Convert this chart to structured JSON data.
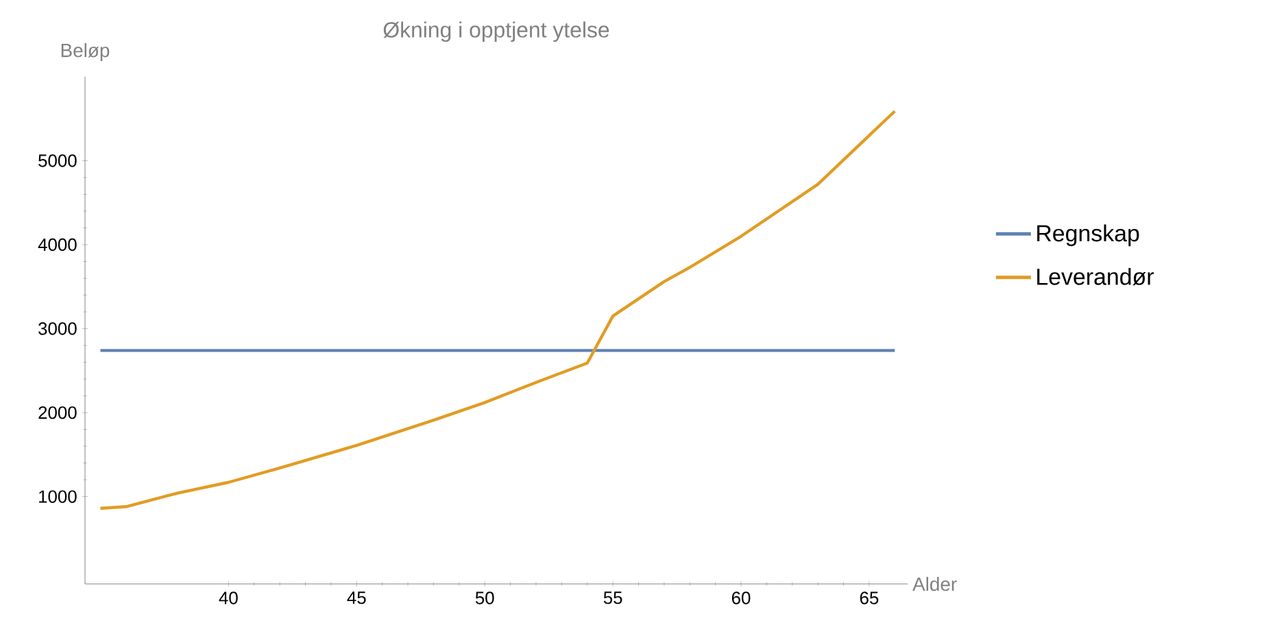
{
  "chart_data": {
    "type": "line",
    "title": "Økning i opptjent ytelse",
    "xlabel": "Alder",
    "ylabel": "Beløp",
    "xlim": [
      34.4,
      66.5
    ],
    "ylim": [
      -40,
      6000
    ],
    "xticks": [
      40,
      45,
      50,
      55,
      60,
      65
    ],
    "yticks": [
      1000,
      2000,
      3000,
      4000,
      5000
    ],
    "grid": false,
    "legend": "right",
    "line_style": "solid",
    "marker": "none",
    "series": [
      {
        "name": "Regnskap",
        "color": "#5e81b5",
        "x": [
          35,
          66
        ],
        "values": [
          2740,
          2740
        ]
      },
      {
        "name": "Leverandør",
        "color": "#e19c24",
        "x": [
          35,
          36,
          38,
          40,
          42,
          45,
          48,
          50,
          52,
          54,
          55,
          57,
          58,
          60,
          63,
          66
        ],
        "values": [
          860,
          880,
          1040,
          1170,
          1340,
          1610,
          1910,
          2120,
          2360,
          2590,
          3150,
          3560,
          3730,
          4100,
          4720,
          5590
        ]
      }
    ]
  }
}
